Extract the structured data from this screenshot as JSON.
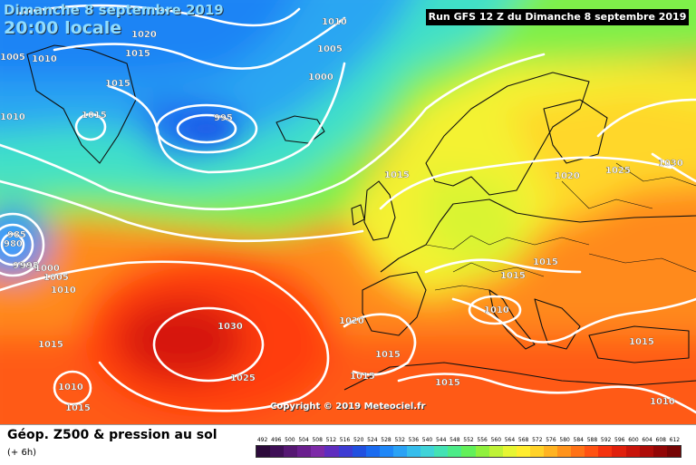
{
  "header": {
    "date_title": "Dimanche 8 septembre 2019",
    "time_title": "20:00 locale",
    "run_info": "Run GFS 12 Z du Dimanche 8 septembre 2019"
  },
  "map": {
    "pressure_labels": [
      {
        "text": "1010",
        "cls": "iso-label-1010-north"
      },
      {
        "text": "1020",
        "cls": "iso-label-1020-north"
      },
      {
        "text": "1010",
        "cls": "iso-label-1010-greenland"
      },
      {
        "text": "1015",
        "cls": "iso-label-1015-north"
      },
      {
        "text": "1005",
        "cls": "iso-label-1005-north"
      },
      {
        "text": "1000",
        "cls": "iso-label-1000"
      },
      {
        "text": "1015",
        "cls": "iso-label-1015-greenland"
      },
      {
        "text": "1015",
        "cls": "iso-label-1015-west"
      },
      {
        "text": "995",
        "cls": "iso-label-995"
      },
      {
        "text": "1015",
        "cls": "iso-label-1015-uk"
      },
      {
        "text": "1020",
        "cls": "iso-label-1020-scandinavia"
      },
      {
        "text": "1025",
        "cls": "iso-label-1025"
      },
      {
        "text": "1030",
        "cls": "iso-label-1030-russia"
      },
      {
        "text": "980",
        "cls": "iso-label-980"
      },
      {
        "text": "985",
        "cls": "iso-label-985"
      },
      {
        "text": "990",
        "cls": "iso-label-990"
      },
      {
        "text": "995",
        "cls": "iso-label-995-west"
      },
      {
        "text": "1000",
        "cls": "iso-label-1000-west"
      },
      {
        "text": "1005",
        "cls": "iso-label-1005-west"
      },
      {
        "text": "1010",
        "cls": "iso-label-1010-west"
      },
      {
        "text": "1015",
        "cls": "iso-label-1015-central"
      },
      {
        "text": "1015",
        "cls": "iso-label-1015-east"
      },
      {
        "text": "1010",
        "cls": "iso-label-1010-alps"
      },
      {
        "text": "1020",
        "cls": "iso-label-1020-iberia"
      },
      {
        "text": "1030",
        "cls": "iso-label-1030-azores"
      },
      {
        "text": "1015",
        "cls": "iso-label-1015-atlantic"
      },
      {
        "text": "1015",
        "cls": "iso-label-1015-spain"
      },
      {
        "text": "1025",
        "cls": "iso-label-1025-atlantic"
      },
      {
        "text": "1015",
        "cls": "iso-label-1015-morocco"
      },
      {
        "text": "1015",
        "cls": "iso-label-1015-med"
      },
      {
        "text": "1015",
        "cls": "iso-label-1015-balkans"
      },
      {
        "text": "1010",
        "cls": "iso-label-1010-sw"
      },
      {
        "text": "1015",
        "cls": "iso-label-1015-sw"
      },
      {
        "text": "1010",
        "cls": "iso-label-1010-se"
      },
      {
        "text": "1005",
        "cls": "iso-label-1005-corner"
      },
      {
        "text": "1010",
        "cls": "iso-label-1010-corner"
      }
    ],
    "copyright": "Copyright © 2019 Meteociel.fr"
  },
  "footer": {
    "title": "Géop. Z500 & pression au sol",
    "subtitle": "(+ 6h)"
  },
  "legend": {
    "labels": [
      "492",
      "496",
      "500",
      "504",
      "508",
      "512",
      "516",
      "520",
      "524",
      "528",
      "532",
      "536",
      "540",
      "544",
      "548",
      "552",
      "556",
      "560",
      "564",
      "568",
      "572",
      "576",
      "580",
      "584",
      "588",
      "592",
      "596",
      "600",
      "604",
      "608",
      "612"
    ],
    "colors": [
      "#2c0a3a",
      "#3f0f56",
      "#561873",
      "#6a1f8e",
      "#7d2aa8",
      "#5f2dbf",
      "#3d3bd3",
      "#2150e0",
      "#1a6bf0",
      "#1f87f7",
      "#2aa2f5",
      "#35bdec",
      "#3fd3d8",
      "#43e2b4",
      "#4ceb88",
      "#62f05a",
      "#8ff03d",
      "#bff236",
      "#e6f532",
      "#ffed2e",
      "#ffd228",
      "#ffb321",
      "#ff931b",
      "#ff7216",
      "#ff5212",
      "#f5320e",
      "#e0200c",
      "#c8140a",
      "#ae0c08",
      "#920606",
      "#760404"
    ]
  }
}
